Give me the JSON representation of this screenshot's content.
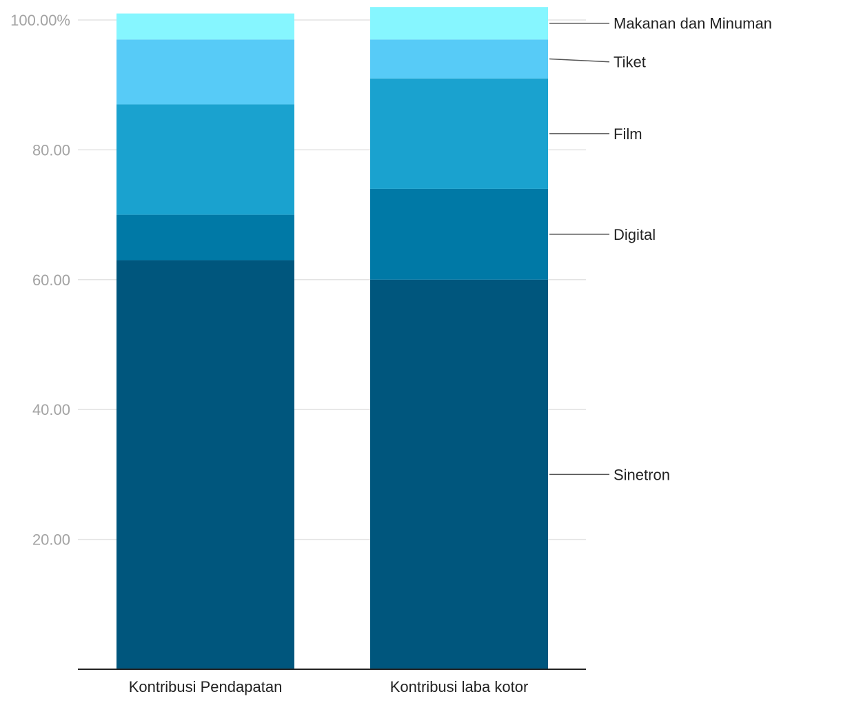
{
  "chart_data": {
    "type": "bar",
    "stacked": true,
    "categories": [
      "Kontribusi Pendapatan",
      "Kontribusi laba kotor"
    ],
    "series": [
      {
        "name": "Sinetron",
        "color": "#00567d",
        "values": [
          63,
          60
        ]
      },
      {
        "name": "Digital",
        "color": "#0079a6",
        "values": [
          7,
          14
        ]
      },
      {
        "name": "Film",
        "color": "#1aa2cf",
        "values": [
          17,
          17
        ]
      },
      {
        "name": "Tiket",
        "color": "#57cbf7",
        "values": [
          10,
          6
        ]
      },
      {
        "name": "Makanan dan Minuman",
        "color": "#86f6ff",
        "values": [
          4,
          5
        ]
      }
    ],
    "yticks": [
      {
        "value": 20,
        "label": "20.00"
      },
      {
        "value": 40,
        "label": "40.00"
      },
      {
        "value": 60,
        "label": "60.00"
      },
      {
        "value": 80,
        "label": "80.00"
      },
      {
        "value": 100,
        "label": "100.00%"
      }
    ],
    "ylim": [
      0,
      100
    ],
    "grid": true,
    "legend": "direct labels right of last bar",
    "title": "",
    "xlabel": "",
    "ylabel": ""
  }
}
